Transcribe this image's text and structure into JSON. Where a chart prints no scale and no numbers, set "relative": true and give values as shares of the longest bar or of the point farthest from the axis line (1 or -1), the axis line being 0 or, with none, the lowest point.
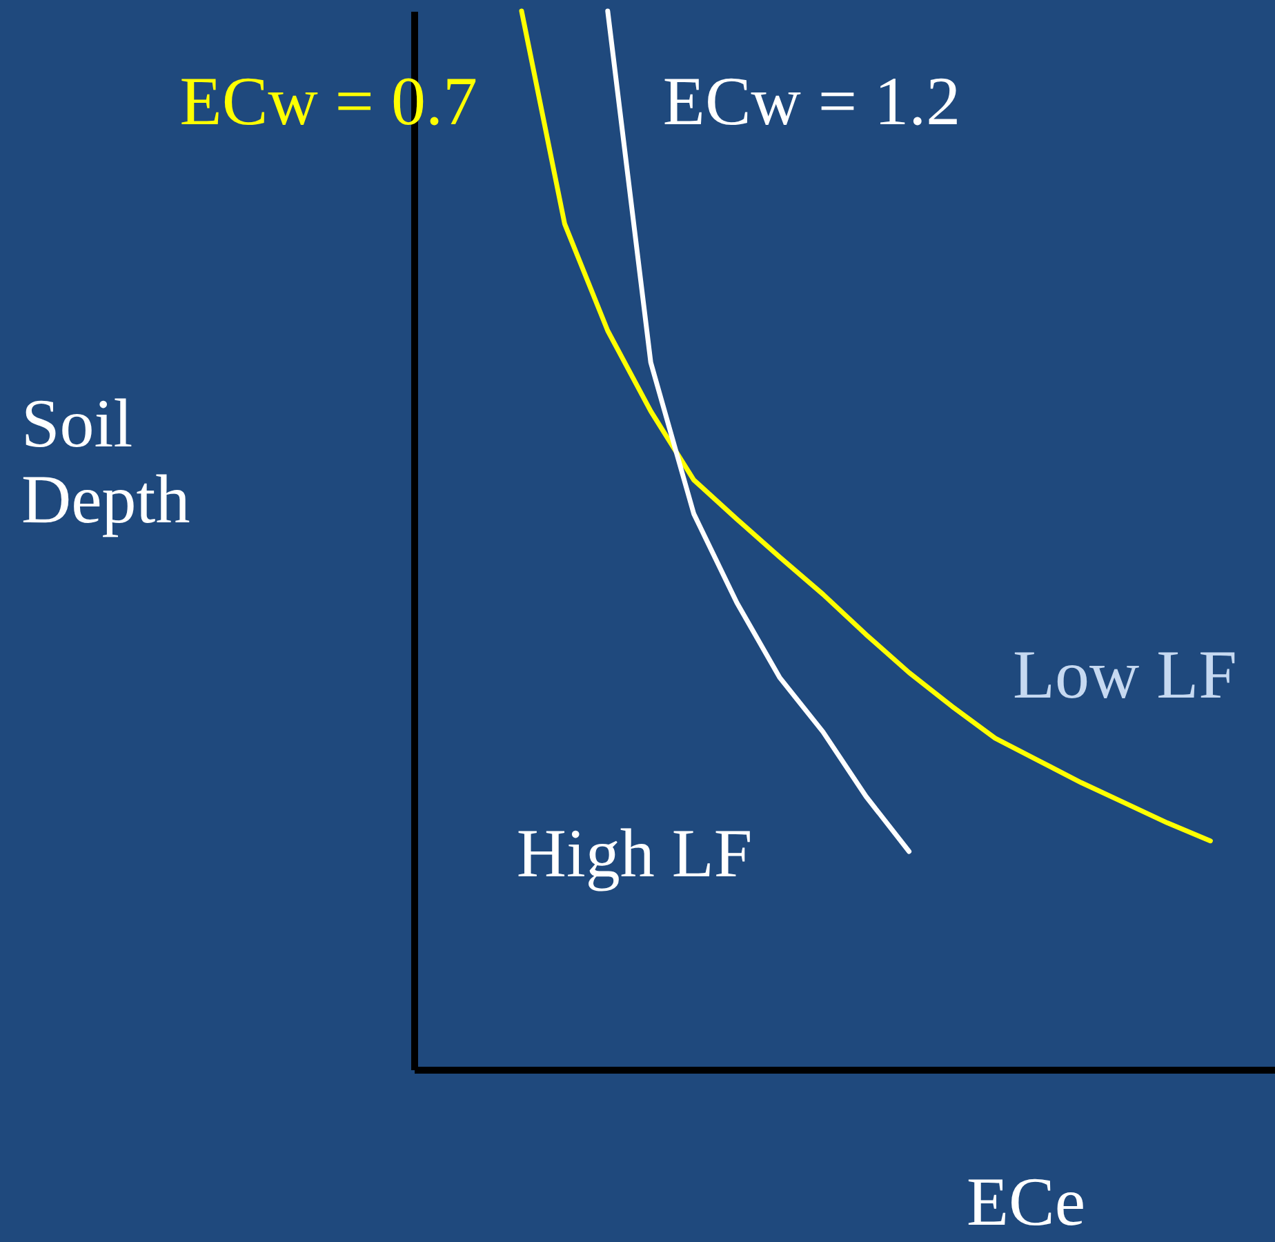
{
  "chart_data": {
    "type": "line",
    "relative": true,
    "xlabel": "ECe",
    "ylabel": "Soil Depth",
    "grid": false,
    "marker": "none",
    "line_style": "solid",
    "categories": [
      null,
      null,
      null,
      null,
      null,
      null,
      null,
      null,
      null,
      null,
      null,
      null,
      null,
      null,
      null,
      null,
      null,
      null,
      null,
      null
    ],
    "series": [
      {
        "name": "ECw = 0.7",
        "color": "#ffff00",
        "values": [
          null,
          null,
          1,
          0.799,
          0.698,
          0.622,
          0.557,
          0.52,
          0.484,
          0.449,
          0.411,
          0.375,
          0.343,
          0.313,
          0.292,
          0.271,
          0.252,
          0.233,
          0.216,
          null
        ]
      },
      {
        "name": "ECw = 1.2",
        "color": "#ffffff",
        "values": [
          null,
          null,
          null,
          null,
          1,
          0.668,
          0.525,
          0.441,
          0.37,
          0.319,
          0.258,
          0.206,
          null,
          null,
          null,
          null,
          null,
          null,
          null,
          null
        ]
      }
    ],
    "annotations": [
      "Low LF",
      "High LF"
    ]
  }
}
